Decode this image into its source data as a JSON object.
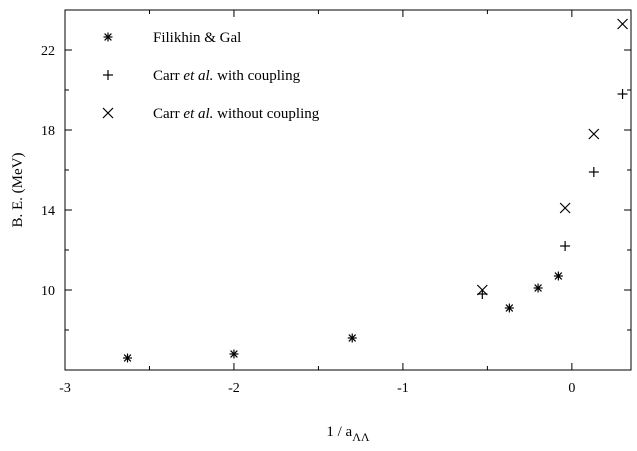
{
  "chart_data": {
    "type": "scatter",
    "title": "",
    "xlabel": "1 / a",
    "xlabel_subscript": "ΛΛ",
    "ylabel": "B. E.  (MeV)",
    "xlim": [
      -3,
      0.35
    ],
    "ylim": [
      6,
      24
    ],
    "x_ticks": [
      -3,
      -2,
      -1,
      0
    ],
    "x_tick_labels": [
      "-3",
      "-2",
      "-1",
      "0"
    ],
    "y_ticks": [
      10,
      14,
      18,
      22
    ],
    "y_tick_labels": [
      "10",
      "14",
      "18",
      "22"
    ],
    "grid": false,
    "legend_position": "top-left",
    "series": [
      {
        "name_parts": [
          "Filikhin & Gal",
          "",
          ""
        ],
        "marker": "asterisk",
        "x": [
          -2.63,
          -2.0,
          -1.3,
          -0.37,
          -0.2,
          -0.08
        ],
        "y": [
          6.6,
          6.8,
          7.6,
          9.1,
          10.1,
          10.7
        ]
      },
      {
        "name_parts": [
          "Carr ",
          "et al.",
          " with coupling"
        ],
        "marker": "plus",
        "x": [
          -0.53,
          -0.04,
          0.13,
          0.3
        ],
        "y": [
          9.8,
          12.2,
          15.9,
          19.8
        ]
      },
      {
        "name_parts": [
          "Carr ",
          "et al.",
          " without coupling"
        ],
        "marker": "cross",
        "x": [
          -0.53,
          -0.04,
          0.13,
          0.3
        ],
        "y": [
          10.0,
          14.1,
          17.8,
          23.3
        ]
      }
    ]
  }
}
